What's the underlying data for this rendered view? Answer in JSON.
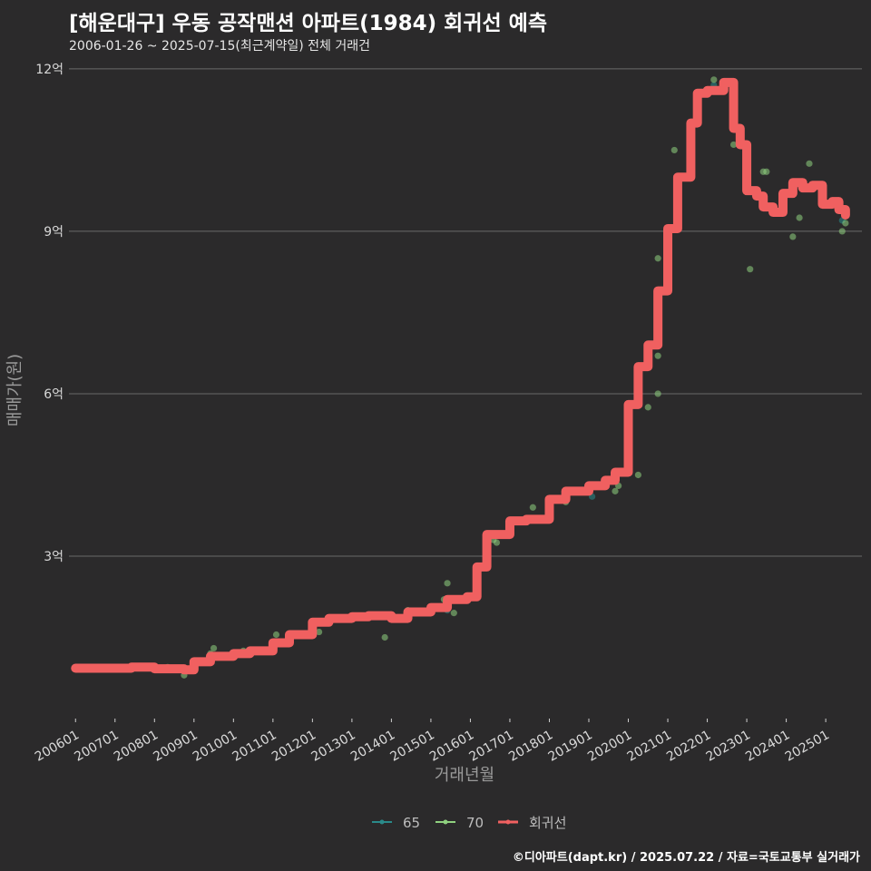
{
  "title": "[해운대구] 우동 공작맨션 아파트(1984) 회귀선 예측",
  "subtitle": "2006-01-26 ~ 2025-07-15(최근계약일) 전체 거래건",
  "credit": "©디아파트(dapt.kr) / 2025.07.22 / 자료=국토교통부 실거래가",
  "colors": {
    "background": "#2b2a2b",
    "grid": "#6a6a6a",
    "s65": "#2a8a8a",
    "s70": "#8fd17f",
    "regression": "#f06060"
  },
  "chart_data": {
    "type": "scatter",
    "xlabel": "거래년월",
    "ylabel": "매매가(원)",
    "x_range": [
      "2005-11",
      "2025-12"
    ],
    "ylim": [
      0,
      12.3
    ],
    "y_ticks": [
      {
        "value": 3,
        "label": "3억"
      },
      {
        "value": 6,
        "label": "6억"
      },
      {
        "value": 9,
        "label": "9억"
      },
      {
        "value": 12,
        "label": "12억"
      }
    ],
    "x_ticks": [
      "200601",
      "200701",
      "200801",
      "200901",
      "201001",
      "201101",
      "201201",
      "201301",
      "201401",
      "201501",
      "201601",
      "201701",
      "201801",
      "201901",
      "202001",
      "202101",
      "202201",
      "202301",
      "202401",
      "202501"
    ],
    "legend": {
      "position": "bottom",
      "entries": [
        "65",
        "70",
        "회귀선"
      ]
    },
    "series": [
      {
        "name": "65",
        "points": [
          [
            "2009-04",
            1.05
          ],
          [
            "2015-06",
            2.0
          ],
          [
            "2019-02",
            4.1
          ],
          [
            "2022-03",
            11.7
          ],
          [
            "2025-06",
            9.2
          ]
        ]
      },
      {
        "name": "70",
        "points": [
          [
            "2008-05",
            0.95
          ],
          [
            "2008-10",
            0.8
          ],
          [
            "2009-06",
            1.2
          ],
          [
            "2009-07",
            1.3
          ],
          [
            "2010-04",
            1.25
          ],
          [
            "2011-02",
            1.55
          ],
          [
            "2012-03",
            1.6
          ],
          [
            "2013-11",
            1.5
          ],
          [
            "2014-06",
            2.0
          ],
          [
            "2015-05",
            2.2
          ],
          [
            "2015-06",
            2.5
          ],
          [
            "2015-08",
            1.95
          ],
          [
            "2016-08",
            3.3
          ],
          [
            "2016-09",
            3.25
          ],
          [
            "2017-08",
            3.9
          ],
          [
            "2018-01",
            4.0
          ],
          [
            "2018-06",
            4.0
          ],
          [
            "2019-06",
            4.4
          ],
          [
            "2019-09",
            4.2
          ],
          [
            "2019-10",
            4.3
          ],
          [
            "2020-04",
            4.5
          ],
          [
            "2020-07",
            5.75
          ],
          [
            "2020-10",
            6.0
          ],
          [
            "2020-10",
            6.7
          ],
          [
            "2020-10",
            8.5
          ],
          [
            "2021-03",
            10.5
          ],
          [
            "2022-03",
            11.8
          ],
          [
            "2022-09",
            10.6
          ],
          [
            "2023-02",
            8.3
          ],
          [
            "2023-06",
            10.1
          ],
          [
            "2023-07",
            10.1
          ],
          [
            "2024-03",
            8.9
          ],
          [
            "2024-05",
            9.25
          ],
          [
            "2024-08",
            10.25
          ],
          [
            "2025-06",
            9.0
          ],
          [
            "2025-07",
            9.15
          ]
        ]
      },
      {
        "name": "회귀선",
        "points": [
          [
            "2006-01",
            0.93
          ],
          [
            "2006-06",
            0.93
          ],
          [
            "2007-01",
            0.93
          ],
          [
            "2007-06",
            0.95
          ],
          [
            "2008-01",
            0.92
          ],
          [
            "2008-10",
            0.9
          ],
          [
            "2009-01",
            1.05
          ],
          [
            "2009-06",
            1.15
          ],
          [
            "2010-01",
            1.2
          ],
          [
            "2010-06",
            1.25
          ],
          [
            "2011-01",
            1.4
          ],
          [
            "2011-06",
            1.55
          ],
          [
            "2012-01",
            1.78
          ],
          [
            "2012-06",
            1.85
          ],
          [
            "2013-01",
            1.88
          ],
          [
            "2013-06",
            1.9
          ],
          [
            "2014-01",
            1.85
          ],
          [
            "2014-06",
            1.97
          ],
          [
            "2015-01",
            2.05
          ],
          [
            "2015-06",
            2.2
          ],
          [
            "2015-12",
            2.25
          ],
          [
            "2016-03",
            2.8
          ],
          [
            "2016-06",
            3.4
          ],
          [
            "2017-01",
            3.65
          ],
          [
            "2017-06",
            3.68
          ],
          [
            "2018-01",
            4.05
          ],
          [
            "2018-06",
            4.2
          ],
          [
            "2019-01",
            4.3
          ],
          [
            "2019-06",
            4.4
          ],
          [
            "2019-09",
            4.55
          ],
          [
            "2020-01",
            5.8
          ],
          [
            "2020-04",
            6.5
          ],
          [
            "2020-07",
            6.9
          ],
          [
            "2020-10",
            7.9
          ],
          [
            "2021-01",
            9.05
          ],
          [
            "2021-04",
            10.0
          ],
          [
            "2021-08",
            11.0
          ],
          [
            "2021-10",
            11.55
          ],
          [
            "2022-01",
            11.6
          ],
          [
            "2022-03",
            11.6
          ],
          [
            "2022-06",
            11.75
          ],
          [
            "2022-09",
            10.9
          ],
          [
            "2022-11",
            10.6
          ],
          [
            "2023-01",
            9.75
          ],
          [
            "2023-04",
            9.65
          ],
          [
            "2023-06",
            9.45
          ],
          [
            "2023-09",
            9.35
          ],
          [
            "2023-12",
            9.7
          ],
          [
            "2024-03",
            9.9
          ],
          [
            "2024-06",
            9.8
          ],
          [
            "2024-09",
            9.85
          ],
          [
            "2024-12",
            9.5
          ],
          [
            "2025-03",
            9.55
          ],
          [
            "2025-05",
            9.4
          ],
          [
            "2025-07",
            9.3
          ]
        ]
      }
    ]
  }
}
